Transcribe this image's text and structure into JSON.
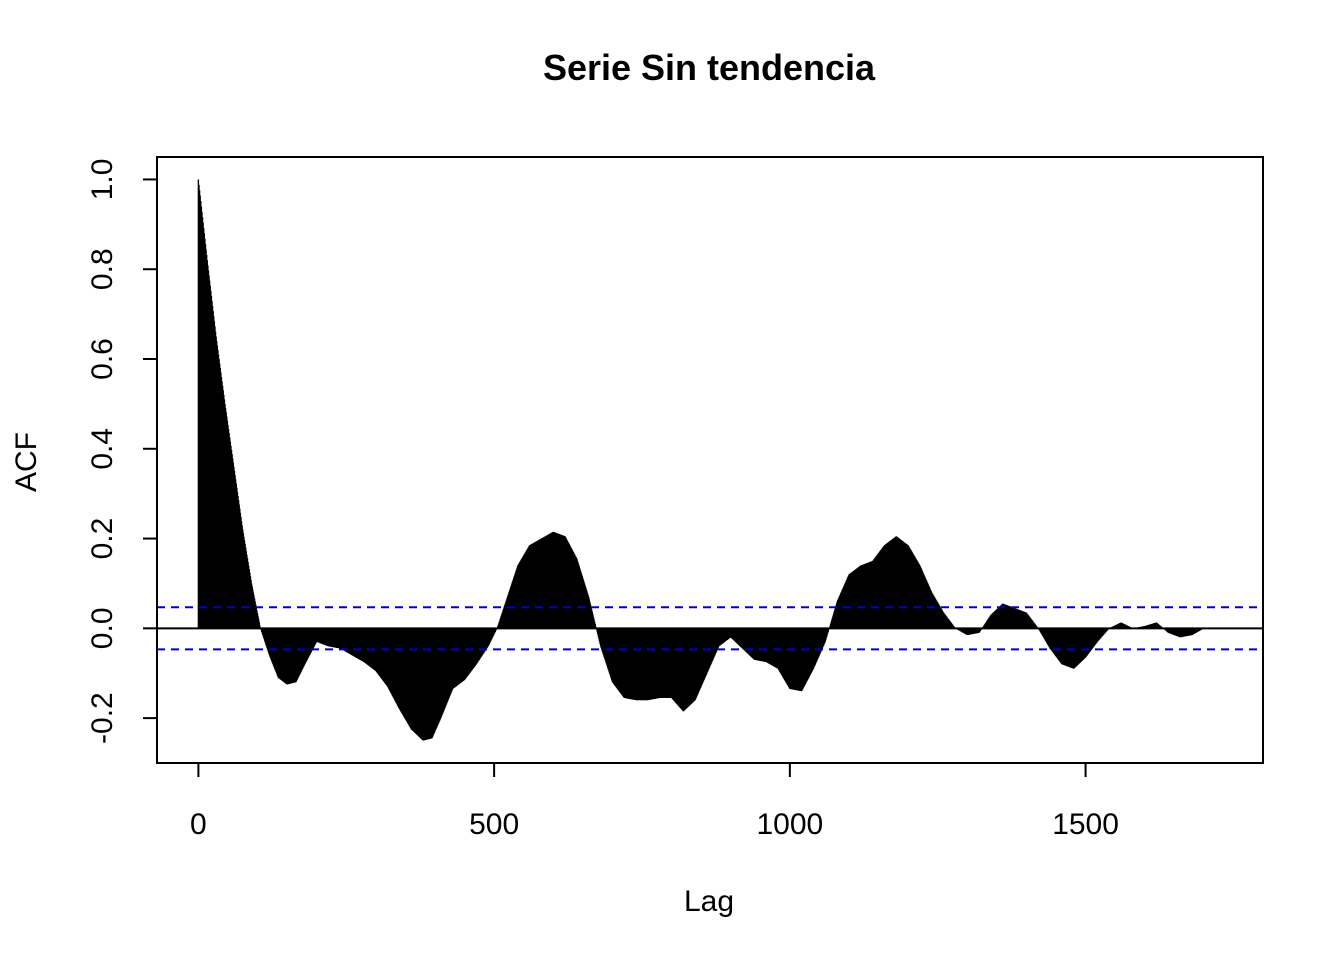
{
  "chart_data": {
    "type": "bar",
    "title": "Serie Sin tendencia",
    "xlabel": "Lag",
    "ylabel": "ACF",
    "xlim": [
      -70,
      1800
    ],
    "ylim": [
      -0.3,
      1.05
    ],
    "x_ticks": [
      0,
      500,
      1000,
      1500
    ],
    "x_tick_labels": [
      "0",
      "500",
      "1000",
      "1500"
    ],
    "y_ticks": [
      -0.2,
      0.0,
      0.2,
      0.4,
      0.6,
      0.8,
      1.0
    ],
    "y_tick_labels": [
      "-0.2",
      "0.0",
      "0.2",
      "0.4",
      "0.6",
      "0.8",
      "1.0"
    ],
    "grid": false,
    "confidence_bounds": [
      0.047,
      -0.047
    ],
    "colors": {
      "bars": "#000000",
      "confidence_line": "#0000cc",
      "zero_line": "#000000"
    },
    "acf_profile": {
      "lags": [
        0,
        15,
        30,
        45,
        60,
        75,
        90,
        105,
        120,
        135,
        150,
        165,
        180,
        200,
        220,
        240,
        260,
        280,
        300,
        320,
        340,
        360,
        380,
        395,
        410,
        430,
        450,
        470,
        490,
        505,
        520,
        540,
        560,
        580,
        600,
        620,
        640,
        660,
        680,
        700,
        720,
        740,
        760,
        780,
        800,
        820,
        840,
        860,
        880,
        900,
        920,
        940,
        960,
        980,
        1000,
        1020,
        1040,
        1060,
        1080,
        1100,
        1120,
        1140,
        1160,
        1180,
        1200,
        1220,
        1240,
        1260,
        1280,
        1300,
        1320,
        1340,
        1360,
        1380,
        1400,
        1420,
        1440,
        1460,
        1480,
        1500,
        1520,
        1540,
        1560,
        1580,
        1600,
        1620,
        1640,
        1660,
        1680,
        1700
      ],
      "values": [
        1.0,
        0.82,
        0.65,
        0.5,
        0.36,
        0.22,
        0.1,
        0.0,
        -0.06,
        -0.11,
        -0.125,
        -0.12,
        -0.08,
        -0.03,
        -0.04,
        -0.045,
        -0.06,
        -0.075,
        -0.095,
        -0.13,
        -0.18,
        -0.225,
        -0.25,
        -0.245,
        -0.2,
        -0.135,
        -0.115,
        -0.08,
        -0.04,
        0.0,
        0.06,
        0.14,
        0.185,
        0.2,
        0.215,
        0.205,
        0.155,
        0.07,
        -0.04,
        -0.12,
        -0.155,
        -0.16,
        -0.16,
        -0.155,
        -0.155,
        -0.185,
        -0.16,
        -0.1,
        -0.04,
        -0.02,
        -0.045,
        -0.07,
        -0.075,
        -0.09,
        -0.135,
        -0.14,
        -0.09,
        -0.03,
        0.06,
        0.12,
        0.14,
        0.15,
        0.185,
        0.205,
        0.185,
        0.14,
        0.08,
        0.035,
        0.0,
        -0.015,
        -0.01,
        0.03,
        0.055,
        0.045,
        0.035,
        0.0,
        -0.045,
        -0.08,
        -0.09,
        -0.065,
        -0.03,
        0.0,
        0.013,
        0.0,
        0.005,
        0.013,
        -0.01,
        -0.02,
        -0.015,
        0.0
      ]
    }
  }
}
